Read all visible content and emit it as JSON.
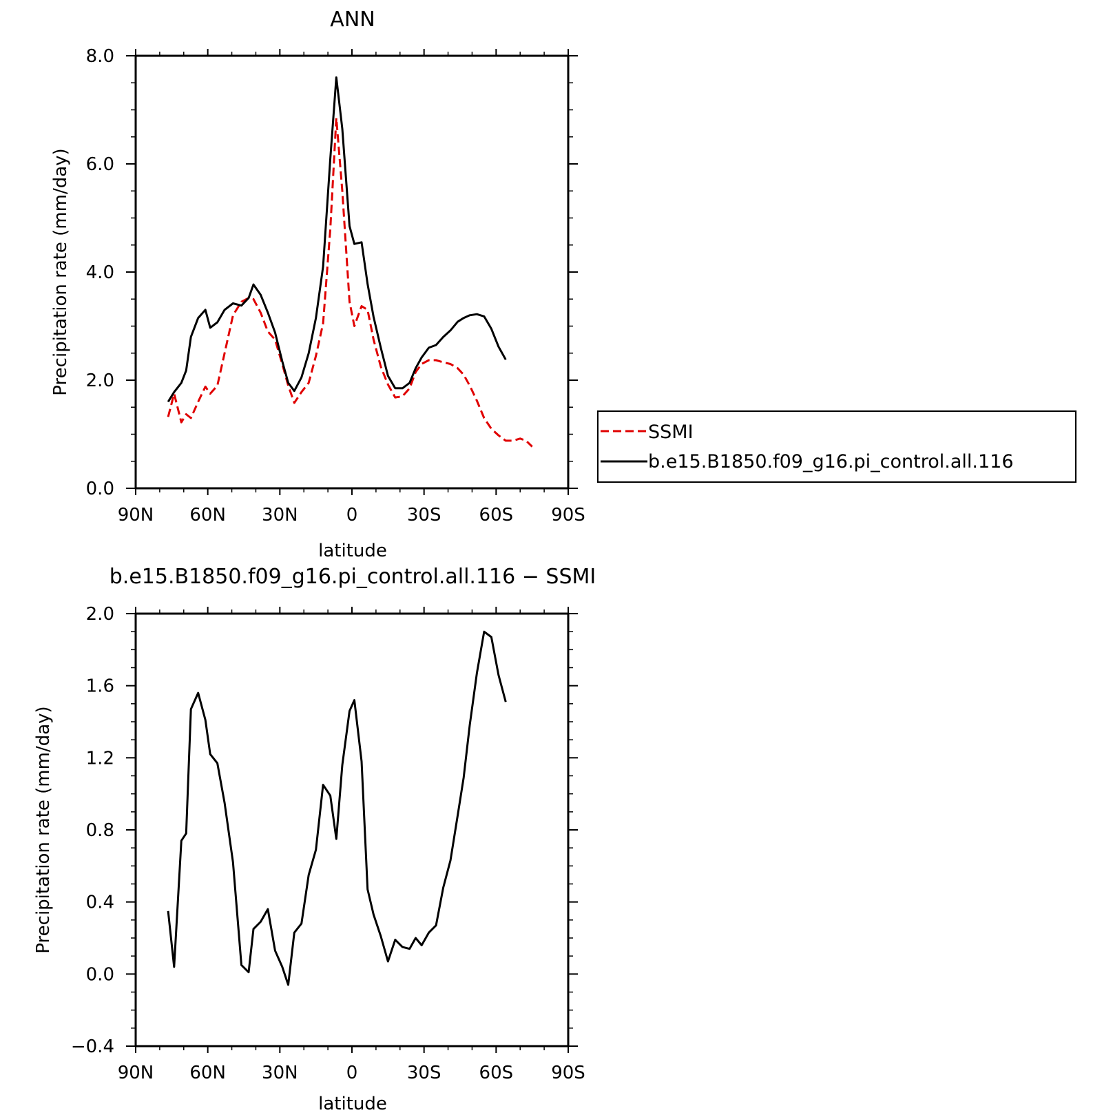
{
  "chart_data": [
    {
      "type": "line",
      "title": "ANN",
      "xlabel": "latitude",
      "ylabel": "Precipitation rate (mm/day)",
      "xlim": [
        90,
        -90
      ],
      "ylim": [
        0,
        8
      ],
      "x_ticks": [
        90,
        60,
        30,
        0,
        -30,
        -60,
        -90
      ],
      "x_tick_labels": [
        "90N",
        "60N",
        "30N",
        "0",
        "30S",
        "60S",
        "90S"
      ],
      "y_ticks": [
        0,
        2,
        4,
        6,
        8
      ],
      "y_tick_labels": [
        "0.0",
        "2.0",
        "4.0",
        "6.0",
        "8.0"
      ],
      "legend": {
        "placement": "right",
        "entries": [
          "SSMI",
          "b.e15.B1850.f09_g16.pi_control.all.116"
        ]
      },
      "series": [
        {
          "name": "SSMI",
          "color": "#e00000",
          "dash": true,
          "x": [
            76.5,
            74,
            71,
            69,
            67,
            64,
            61,
            59,
            56,
            53,
            49.5,
            46,
            43,
            41,
            38,
            35,
            32,
            29,
            26.5,
            24,
            21,
            18,
            15,
            12,
            9,
            6.5,
            4,
            1,
            -1,
            -4,
            -6.5,
            -9,
            -12,
            -15,
            -18,
            -21,
            -24,
            -26.5,
            -29,
            -32,
            -35,
            -38,
            -41,
            -44,
            -46.5,
            -49,
            -52,
            -55,
            -58,
            -61,
            -64,
            -67,
            -70,
            -72.5,
            -75
          ],
          "y": [
            1.32,
            1.75,
            1.22,
            1.37,
            1.3,
            1.6,
            1.88,
            1.75,
            1.9,
            2.5,
            3.2,
            3.45,
            3.52,
            3.5,
            3.25,
            2.9,
            2.75,
            2.3,
            1.9,
            1.58,
            1.78,
            1.95,
            2.45,
            3.05,
            4.8,
            6.85,
            5.5,
            3.45,
            3.0,
            3.37,
            3.3,
            2.75,
            2.25,
            1.92,
            1.68,
            1.7,
            1.85,
            2.15,
            2.3,
            2.37,
            2.37,
            2.33,
            2.3,
            2.22,
            2.1,
            1.9,
            1.62,
            1.3,
            1.1,
            0.98,
            0.88,
            0.88,
            0.92,
            0.88,
            0.77
          ]
        },
        {
          "name": "b.e15.B1850.f09_g16.pi_control.all.116",
          "color": "#000000",
          "dash": false,
          "x": [
            76.5,
            74,
            71,
            69,
            67,
            64,
            61,
            59,
            56,
            53,
            49.5,
            46,
            43,
            41,
            38,
            35,
            32,
            29,
            26.5,
            24,
            21,
            18,
            15,
            12,
            9,
            6.5,
            4,
            1,
            -1,
            -4,
            -6.5,
            -9,
            -12,
            -15,
            -18,
            -21,
            -24,
            -26.5,
            -29,
            -32,
            -35,
            -38,
            -41,
            -44,
            -46.5,
            -49,
            -52,
            -55,
            -58,
            -61,
            -64
          ],
          "y": [
            1.6,
            1.78,
            1.95,
            2.18,
            2.8,
            3.15,
            3.3,
            2.97,
            3.07,
            3.3,
            3.42,
            3.38,
            3.52,
            3.77,
            3.58,
            3.25,
            2.88,
            2.35,
            1.95,
            1.8,
            2.05,
            2.5,
            3.15,
            4.1,
            6.1,
            7.6,
            6.65,
            4.85,
            4.52,
            4.55,
            3.78,
            3.17,
            2.6,
            2.08,
            1.85,
            1.85,
            1.95,
            2.22,
            2.42,
            2.6,
            2.65,
            2.8,
            2.92,
            3.08,
            3.15,
            3.2,
            3.22,
            3.18,
            2.95,
            2.62,
            2.38
          ]
        }
      ]
    },
    {
      "type": "line",
      "title": "b.e15.B1850.f09_g16.pi_control.all.116 − SSMI",
      "xlabel": "latitude",
      "ylabel": "Precipitation rate (mm/day)",
      "xlim": [
        90,
        -90
      ],
      "ylim": [
        -0.4,
        2.0
      ],
      "x_ticks": [
        90,
        60,
        30,
        0,
        -30,
        -60,
        -90
      ],
      "x_tick_labels": [
        "90N",
        "60N",
        "30N",
        "0",
        "30S",
        "60S",
        "90S"
      ],
      "y_ticks": [
        -0.4,
        0,
        0.4,
        0.8,
        1.2,
        1.6,
        2.0
      ],
      "y_tick_labels": [
        "−0.4",
        "0.0",
        "0.4",
        "0.8",
        "1.2",
        "1.6",
        "2.0"
      ],
      "series": [
        {
          "color": "#000000",
          "dash": false,
          "x": [
            76.5,
            74,
            71,
            69,
            67,
            64,
            61,
            59,
            56,
            53,
            49.5,
            46,
            43,
            41,
            38,
            35,
            32,
            29,
            26.5,
            24,
            21,
            18,
            15,
            12,
            9,
            6.5,
            4,
            1,
            -1,
            -4,
            -6.5,
            -9,
            -12,
            -15,
            -18,
            -21,
            -24,
            -26.5,
            -29,
            -32,
            -35,
            -38,
            -41,
            -44,
            -46.5,
            -49,
            -52,
            -55,
            -58,
            -61,
            -64
          ],
          "y": [
            0.35,
            0.04,
            0.74,
            0.78,
            1.47,
            1.56,
            1.41,
            1.22,
            1.17,
            0.95,
            0.62,
            0.05,
            0.01,
            0.25,
            0.29,
            0.36,
            0.13,
            0.04,
            -0.06,
            0.23,
            0.28,
            0.55,
            0.69,
            1.05,
            0.99,
            0.75,
            1.16,
            1.46,
            1.52,
            1.18,
            0.47,
            0.33,
            0.21,
            0.07,
            0.19,
            0.15,
            0.14,
            0.2,
            0.16,
            0.23,
            0.27,
            0.48,
            0.63,
            0.88,
            1.09,
            1.38,
            1.67,
            1.9,
            1.87,
            1.66,
            1.51
          ]
        }
      ]
    }
  ]
}
